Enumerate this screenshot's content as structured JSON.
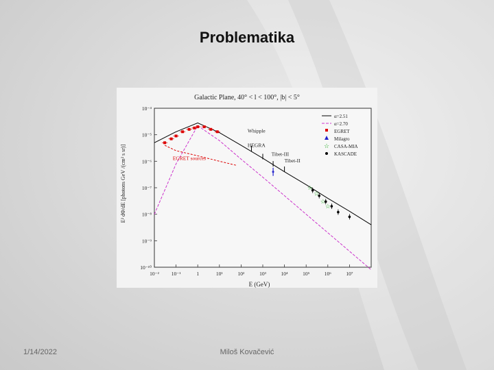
{
  "slide": {
    "title": "Problematika",
    "date": "1/14/2022",
    "author": "Miloš Kovačević"
  },
  "chart_data": {
    "type": "line",
    "title": "Galactic Plane, 40° < l < 100°, |b| < 5°",
    "xlabel": "E (GeV)",
    "ylabel": "E² dΦ/dE [photons GeV /(cm² s sr)]",
    "xscale": "log",
    "yscale": "log",
    "xlim": [
      0.01,
      100000000
    ],
    "ylim": [
      1e-10,
      0.0001
    ],
    "x_ticks": [
      "10⁻²",
      "10⁻¹",
      "1",
      "10¹",
      "10²",
      "10³",
      "10⁴",
      "10⁵",
      "10⁶",
      "10⁷"
    ],
    "y_ticks": [
      "10⁻¹⁰",
      "10⁻⁹",
      "10⁻⁸",
      "10⁻⁷",
      "10⁻⁶",
      "10⁻⁵",
      "10⁻⁴"
    ],
    "annotations": [
      "Whipple",
      "HEGRA",
      "Tibet-III",
      "Tibet-II",
      "EGRET sources"
    ],
    "legend": [
      "α=2.51",
      "α=2.70",
      "EGRET",
      "Milagro",
      "CASA-MIA",
      "KASCADE"
    ],
    "legend_position": "top-right",
    "series": [
      {
        "name": "α=2.51",
        "color": "#000000",
        "x": [
          0.01,
          0.1,
          1,
          10,
          100,
          1000,
          10000,
          100000,
          1000000,
          10000000,
          100000000
        ],
        "y": [
          5e-06,
          1.3e-05,
          2.8e-05,
          1.2e-05,
          4e-06,
          1.3e-06,
          4e-07,
          1.3e-07,
          4e-08,
          1.3e-08,
          4e-09
        ]
      },
      {
        "name": "α=2.70",
        "color": "#cc33cc",
        "x": [
          0.01,
          0.1,
          1,
          10,
          100,
          1000,
          10000,
          100000,
          1000000,
          10000000,
          100000000
        ],
        "y": [
          1e-08,
          8e-07,
          2.2e-05,
          6e-06,
          1.2e-06,
          2.5e-07,
          5e-08,
          1e-08,
          2e-09,
          4e-10,
          8e-11
        ]
      },
      {
        "name": "EGRET",
        "color": "#dd0000",
        "x": [
          0.03,
          0.06,
          0.1,
          0.2,
          0.4,
          0.7,
          1,
          2,
          4,
          8
        ],
        "y": [
          5e-06,
          7e-06,
          9e-06,
          1.3e-05,
          1.6e-05,
          1.8e-05,
          2e-05,
          2e-05,
          1.6e-05,
          1.3e-05
        ]
      },
      {
        "name": "EGRET sources",
        "color": "#dd0000",
        "x": [
          0.03,
          0.1,
          1,
          10,
          60
        ],
        "y": [
          4e-06,
          2.5e-06,
          1.6e-06,
          1e-06,
          7e-07
        ]
      },
      {
        "name": "Milagro",
        "color": "#2222cc",
        "x": [
          3000
        ],
        "y": [
          4e-07
        ]
      },
      {
        "name": "CASA-MIA",
        "color": "#22aa22",
        "x": [
          150000,
          300000,
          600000,
          1000000
        ],
        "y": [
          1e-07,
          6e-08,
          3e-08,
          2e-08
        ]
      },
      {
        "name": "KASCADE",
        "color": "#000000",
        "x": [
          200000,
          400000,
          800000,
          1500000,
          3000000,
          10000000
        ],
        "y": [
          8e-08,
          5e-08,
          3e-08,
          2e-08,
          1.2e-08,
          8e-09
        ]
      },
      {
        "name": "Whipple",
        "color": "#000000",
        "x": [
          300
        ],
        "y": [
          3e-06
        ]
      },
      {
        "name": "HEGRA",
        "color": "#000000",
        "x": [
          1000
        ],
        "y": [
          1.5e-06
        ]
      },
      {
        "name": "Tibet-III",
        "color": "#000000",
        "x": [
          3000
        ],
        "y": [
          8e-07
        ]
      },
      {
        "name": "Tibet-II",
        "color": "#000000",
        "x": [
          10000
        ],
        "y": [
          5e-07
        ]
      }
    ]
  }
}
